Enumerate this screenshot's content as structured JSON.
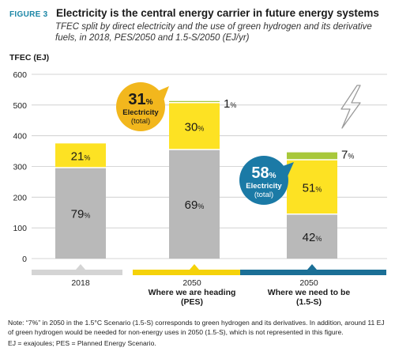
{
  "header": {
    "figure_label": "FIGURE 3",
    "title": "Electricity is the central energy carrier in future energy systems",
    "subtitle": "TFEC split by direct electricity and the use of green hydrogen and its derivative fuels, in 2018, PES/2050 and 1.5-S/2050 (EJ/yr)"
  },
  "chart_data": {
    "type": "bar",
    "stacked": true,
    "ylabel": "TFEC (EJ)",
    "ylim": [
      0,
      600
    ],
    "yticks": [
      0,
      100,
      200,
      300,
      400,
      500,
      600
    ],
    "grid": true,
    "categories": [
      {
        "line1": "2018",
        "line2": "",
        "line3": ""
      },
      {
        "line1": "2050",
        "line2": "Where we are heading",
        "line3": "(PES)"
      },
      {
        "line1": "2050",
        "line2": "Where we need to be",
        "line3": "(1.5-S)"
      }
    ],
    "category_colors": [
      "#d4d4d4",
      "#f5d20a",
      "#1b6f96"
    ],
    "series": [
      {
        "key": "other",
        "color": "#b9b9b9",
        "values": [
          296,
          355,
          145
        ],
        "labels": [
          "79",
          "69",
          "42"
        ]
      },
      {
        "key": "electricity",
        "color": "#fde223",
        "values": [
          79,
          153,
          177
        ],
        "labels": [
          "21",
          "30",
          "51"
        ]
      },
      {
        "key": "hydrogen",
        "color": "#a8c83a",
        "values": [
          0,
          5,
          24
        ],
        "labels": [
          "",
          "1",
          "7"
        ]
      }
    ],
    "pct_symbol": "%",
    "callouts": [
      {
        "bar": 1,
        "pct": "31",
        "line1": "Electricity",
        "line2": "(total)",
        "color": "#f2b71d",
        "text_color": "#1a1a1a"
      },
      {
        "bar": 2,
        "pct": "58",
        "line1": "Electricity",
        "line2": "(total)",
        "color": "#1b7aa6",
        "text_color": "#ffffff"
      }
    ],
    "icon": "lightning-bolt-icon"
  },
  "note": {
    "line1": "Note: “7%” in 2050 in the 1.5°C Scenario (1.5-S) corresponds to green hydrogen and its derivatives. In addition, around 11 EJ of green hydrogen would be needed for non-energy uses in 2050 (1.5-S), which is not represented in this figure.",
    "line2": "EJ = exajoules; PES = Planned Energy Scenario."
  }
}
